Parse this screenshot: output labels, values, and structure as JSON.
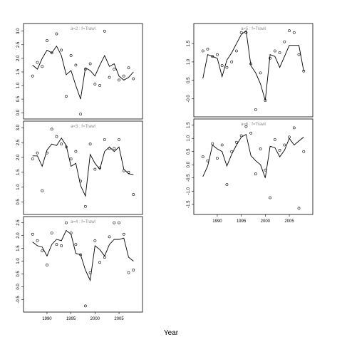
{
  "chart_data": {
    "type": "scatter",
    "xlabel": "Year",
    "xticks": [
      1990,
      1995,
      2000,
      2005
    ],
    "years": [
      1987,
      1988,
      1989,
      1990,
      1991,
      1992,
      1993,
      1994,
      1995,
      1996,
      1997,
      1998,
      1999,
      2000,
      2001,
      2002,
      2003,
      2004,
      2005,
      2006,
      2007,
      2008
    ],
    "panels": [
      {
        "label": "a=2 : f=Trawl",
        "ylim": [
          -0.1,
          3.15
        ],
        "yticks": [
          "0.0",
          "0.5",
          "1.0",
          "1.5",
          "2.0",
          "2.5",
          "3.0"
        ],
        "points": [
          1.35,
          1.85,
          1.7,
          2.65,
          2.2,
          2.9,
          2.3,
          0.6,
          2.1,
          1.75,
          -0.05,
          1.6,
          1.8,
          1.05,
          1.0,
          3.0,
          1.3,
          1.6,
          1.2,
          1.35,
          1.65,
          1.25
        ],
        "fit": [
          1.75,
          1.6,
          2.0,
          2.3,
          2.2,
          2.45,
          2.1,
          1.4,
          1.55,
          1.0,
          0.5,
          1.65,
          1.55,
          1.35,
          1.75,
          2.1,
          1.7,
          1.8,
          1.35,
          1.2,
          1.3,
          1.5
        ]
      },
      {
        "label": "a=3 : f=Trawl",
        "ylim": [
          0.2,
          3.1
        ],
        "yticks": [
          "0.5",
          "1.0",
          "1.5",
          "2.0",
          "2.5",
          "3.0"
        ],
        "points": [
          1.95,
          2.15,
          0.88,
          2.15,
          2.95,
          2.7,
          2.45,
          2.35,
          1.95,
          2.2,
          1.2,
          0.35,
          2.45,
          1.6,
          1.65,
          2.6,
          2.3,
          2.3,
          2.6,
          1.55,
          1.5,
          0.75
        ],
        "fit": [
          2.05,
          2.05,
          1.7,
          2.25,
          2.45,
          2.4,
          2.65,
          2.4,
          1.7,
          1.8,
          1.05,
          0.7,
          2.1,
          1.8,
          1.6,
          2.2,
          2.35,
          2.2,
          2.35,
          1.6,
          1.45,
          1.42
        ]
      },
      {
        "label": "a=4 : f=Trawl",
        "ylim": [
          -0.85,
          2.6
        ],
        "yticks": [
          "-0.5",
          "0.0",
          "0.5",
          "1.0",
          "1.5",
          "2.0",
          "2.5"
        ],
        "points": [
          2.05,
          1.8,
          1.4,
          0.85,
          2.1,
          1.65,
          1.6,
          2.5,
          2.1,
          1.65,
          1.25,
          -0.75,
          0.55,
          1.8,
          0.95,
          1.15,
          1.95,
          2.5,
          2.5,
          2.05,
          0.55,
          0.65
        ],
        "fit": [
          1.75,
          1.6,
          1.55,
          1.2,
          1.65,
          1.85,
          1.8,
          2.2,
          2.05,
          1.3,
          1.25,
          0.65,
          0.25,
          1.6,
          1.45,
          1.2,
          1.65,
          1.85,
          1.85,
          1.9,
          1.15,
          1.0
        ]
      },
      {
        "label": "a=5 : f=Trawl",
        "ylim": [
          -0.4,
          1.95
        ],
        "yticks": [
          "-0.0",
          "0.5",
          "1.0",
          "1.5"
        ],
        "points": [
          1.3,
          1.35,
          1.15,
          1.2,
          0.9,
          0.85,
          1.0,
          1.3,
          1.8,
          1.8,
          0.95,
          -0.3,
          0.7,
          -0.05,
          1.1,
          1.3,
          1.25,
          1.55,
          1.85,
          1.8,
          1.2,
          0.75
        ],
        "fit": [
          0.55,
          1.2,
          1.15,
          1.1,
          0.6,
          1.05,
          1.25,
          1.5,
          1.75,
          1.85,
          0.9,
          0.7,
          0.4,
          -0.05,
          1.2,
          1.15,
          0.85,
          1.15,
          1.45,
          1.45,
          1.45,
          0.75
        ]
      },
      {
        "label": "a=6 : f=Trawl",
        "ylim": [
          -1.75,
          1.6
        ],
        "yticks": [
          "-1.5",
          "-1.0",
          "-0.5",
          "0.0",
          "0.5",
          "1.0",
          "1.5"
        ],
        "points": [
          0.3,
          0.15,
          0.8,
          0.25,
          0.75,
          -0.75,
          0.5,
          0.85,
          1.1,
          1.45,
          1.2,
          -0.35,
          0.6,
          -0.2,
          -1.25,
          0.95,
          0.55,
          0.75,
          1.05,
          1.4,
          -1.65,
          0.5
        ],
        "fit": [
          -0.45,
          -0.05,
          0.75,
          0.6,
          0.5,
          -0.05,
          0.4,
          0.75,
          1.05,
          1.15,
          0.35,
          0.15,
          0.0,
          -0.5,
          0.7,
          0.65,
          0.3,
          0.55,
          1.0,
          0.75,
          0.9,
          1.05
        ]
      }
    ]
  }
}
